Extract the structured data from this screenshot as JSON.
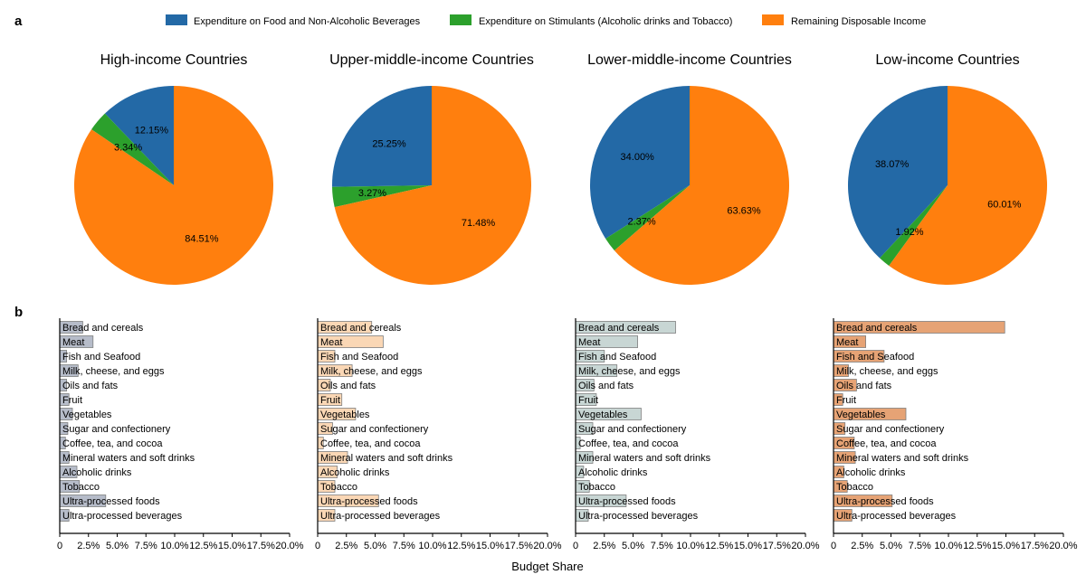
{
  "panel_labels": {
    "a": "a",
    "b": "b"
  },
  "colors": {
    "food": "#2369a6",
    "stimulants": "#2ca02c",
    "remaining": "#ff7f0e"
  },
  "legend": [
    {
      "label": "Expenditure on Food and Non-Alcoholic Beverages",
      "color": "#2369a6"
    },
    {
      "label": "Expenditure on Stimulants (Alcoholic drinks and Tobacco)",
      "color": "#2ca02c"
    },
    {
      "label": "Remaining Disposable Income",
      "color": "#ff7f0e"
    }
  ],
  "shared_xlabel": "Budget Share",
  "chart_data": [
    {
      "type": "pie",
      "title": "High-income Countries",
      "slices": [
        {
          "name": "Expenditure on Food and Non-Alcoholic Beverages",
          "value": 12.15,
          "label": "12.15%"
        },
        {
          "name": "Expenditure on Stimulants (Alcoholic drinks and Tobacco)",
          "value": 3.34,
          "label": "3.34%"
        },
        {
          "name": "Remaining Disposable Income",
          "value": 84.51,
          "label": "84.51%"
        }
      ]
    },
    {
      "type": "pie",
      "title": "Upper-middle-income Countries",
      "slices": [
        {
          "name": "Expenditure on Food and Non-Alcoholic Beverages",
          "value": 25.25,
          "label": "25.25%"
        },
        {
          "name": "Expenditure on Stimulants (Alcoholic drinks and Tobacco)",
          "value": 3.27,
          "label": "3.27%"
        },
        {
          "name": "Remaining Disposable Income",
          "value": 71.48,
          "label": "71.48%"
        }
      ]
    },
    {
      "type": "pie",
      "title": "Lower-middle-income Countries",
      "slices": [
        {
          "name": "Expenditure on Food and Non-Alcoholic Beverages",
          "value": 34.0,
          "label": "34.00%"
        },
        {
          "name": "Expenditure on Stimulants (Alcoholic drinks and Tobacco)",
          "value": 2.37,
          "label": "2.37%"
        },
        {
          "name": "Remaining Disposable Income",
          "value": 63.63,
          "label": "63.63%"
        }
      ]
    },
    {
      "type": "pie",
      "title": "Low-income Countries",
      "slices": [
        {
          "name": "Expenditure on Food and Non-Alcoholic Beverages",
          "value": 38.07,
          "label": "38.07%"
        },
        {
          "name": "Expenditure on Stimulants (Alcoholic drinks and Tobacco)",
          "value": 1.92,
          "label": "1.92%"
        },
        {
          "name": "Remaining Disposable Income",
          "value": 60.01,
          "label": "60.01%"
        }
      ]
    },
    {
      "type": "bar",
      "orientation": "horizontal",
      "color": "#b6bcc9",
      "categories": [
        "Bread and cereals",
        "Meat",
        "Fish and Seafood",
        "Milk, cheese, and eggs",
        "Oils and fats",
        "Fruit",
        "Vegetables",
        "Sugar and confectionery",
        "Coffee, tea, and cocoa",
        "Mineral waters and soft drinks",
        "Alcoholic drinks",
        "Tobacco",
        "Ultra-processed foods",
        "Ultra-processed beverages"
      ],
      "values": [
        2.0,
        2.9,
        0.6,
        1.6,
        0.6,
        0.8,
        1.1,
        0.7,
        0.5,
        0.8,
        1.5,
        1.7,
        4.0,
        0.8
      ],
      "xlim": [
        0,
        20
      ],
      "xticks": [
        "0",
        "2.5%",
        "5.0%",
        "7.5%",
        "10.0%",
        "12.5%",
        "15.0%",
        "17.5%",
        "20.0%"
      ]
    },
    {
      "type": "bar",
      "orientation": "horizontal",
      "color": "#fad7b5",
      "categories": [
        "Bread and cereals",
        "Meat",
        "Fish and Seafood",
        "Milk, cheese, and eggs",
        "Oils and fats",
        "Fruit",
        "Vegetables",
        "Sugar and confectionery",
        "Coffee, tea, and cocoa",
        "Mineral waters and soft drinks",
        "Alcoholic drinks",
        "Tobacco",
        "Ultra-processed foods",
        "Ultra-processed beverages"
      ],
      "values": [
        4.7,
        5.7,
        1.5,
        3.0,
        1.1,
        2.1,
        3.3,
        1.3,
        0.5,
        2.6,
        1.7,
        1.5,
        5.3,
        1.5
      ],
      "xlim": [
        0,
        20
      ],
      "xticks": [
        "0",
        "2.5%",
        "5.0%",
        "7.5%",
        "10.0%",
        "12.5%",
        "15.0%",
        "17.5%",
        "20.0%"
      ]
    },
    {
      "type": "bar",
      "orientation": "horizontal",
      "color": "#c8d6d4",
      "categories": [
        "Bread and cereals",
        "Meat",
        "Fish and Seafood",
        "Milk, cheese, and eggs",
        "Oils and fats",
        "Fruit",
        "Vegetables",
        "Sugar and confectionery",
        "Coffee, tea, and cocoa",
        "Mineral waters and soft drinks",
        "Alcoholic drinks",
        "Tobacco",
        "Ultra-processed foods",
        "Ultra-processed beverages"
      ],
      "values": [
        8.7,
        5.4,
        2.5,
        3.6,
        1.6,
        1.8,
        5.7,
        1.5,
        0.4,
        1.5,
        0.7,
        1.2,
        4.4,
        1.1
      ],
      "xlim": [
        0,
        20
      ],
      "xticks": [
        "0",
        "2.5%",
        "5.0%",
        "7.5%",
        "10.0%",
        "12.5%",
        "15.0%",
        "17.5%",
        "20.0%"
      ]
    },
    {
      "type": "bar",
      "orientation": "horizontal",
      "color": "#e6a375",
      "categories": [
        "Bread and cereals",
        "Meat",
        "Fish and Seafood",
        "Milk, cheese, and eggs",
        "Oils and fats",
        "Fruit",
        "Vegetables",
        "Sugar and confectionery",
        "Coffee, tea, and cocoa",
        "Mineral waters and soft drinks",
        "Alcoholic drinks",
        "Tobacco",
        "Ultra-processed foods",
        "Ultra-processed beverages"
      ],
      "values": [
        14.9,
        2.8,
        4.4,
        1.3,
        2.0,
        0.8,
        6.3,
        1.0,
        1.8,
        1.9,
        0.9,
        1.2,
        5.1,
        1.6
      ],
      "xlim": [
        0,
        20
      ],
      "xticks": [
        "0",
        "2.5%",
        "5.0%",
        "7.5%",
        "10.0%",
        "12.5%",
        "15.0%",
        "17.5%",
        "20.0%"
      ]
    }
  ]
}
